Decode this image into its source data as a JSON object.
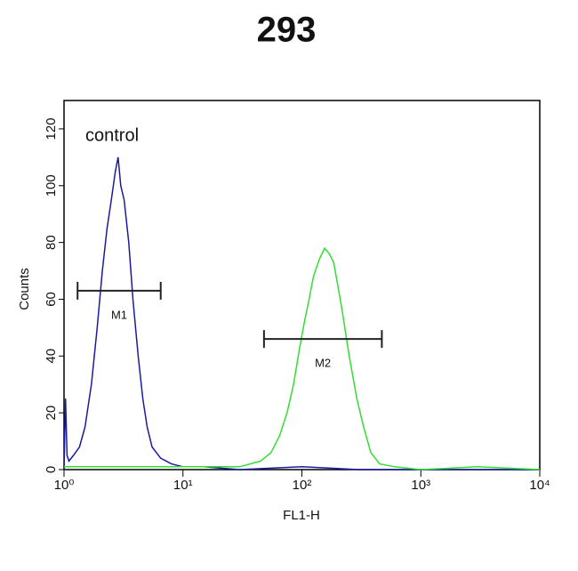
{
  "chart_data": {
    "type": "line",
    "title": "293",
    "annotation": "control",
    "xlabel": "FL1-H",
    "ylabel": "Counts",
    "xscale": "log",
    "xlim": [
      1,
      10000
    ],
    "ylim": [
      0,
      130
    ],
    "xticks": [
      {
        "value": 1,
        "label": "10⁰"
      },
      {
        "value": 10,
        "label": "10¹"
      },
      {
        "value": 100,
        "label": "10²"
      },
      {
        "value": 1000,
        "label": "10³"
      },
      {
        "value": 10000,
        "label": "10⁴"
      }
    ],
    "yticks": [
      0,
      20,
      40,
      60,
      80,
      100,
      120
    ],
    "series": [
      {
        "color": "#1a1aa0",
        "x": [
          1.0,
          1.03,
          1.06,
          1.1,
          1.2,
          1.35,
          1.5,
          1.7,
          1.9,
          2.1,
          2.3,
          2.5,
          2.7,
          2.85,
          3.0,
          3.2,
          3.5,
          3.8,
          4.2,
          4.6,
          5.0,
          5.5,
          6.5,
          8,
          10,
          15,
          30,
          100,
          300,
          1000,
          10000
        ],
        "values": [
          0,
          25,
          5,
          3,
          5,
          8,
          15,
          30,
          50,
          70,
          85,
          95,
          105,
          110,
          100,
          95,
          80,
          60,
          40,
          25,
          15,
          8,
          4,
          2,
          1,
          1,
          0,
          1,
          0,
          0,
          0
        ]
      },
      {
        "color": "#33dd33",
        "x": [
          1,
          10,
          30,
          45,
          55,
          65,
          75,
          85,
          95,
          105,
          115,
          125,
          140,
          155,
          170,
          185,
          200,
          220,
          250,
          290,
          330,
          380,
          450,
          600,
          1000,
          3000,
          10000
        ],
        "values": [
          1,
          1,
          1,
          3,
          6,
          12,
          20,
          30,
          42,
          52,
          60,
          68,
          74,
          78,
          76,
          73,
          65,
          55,
          40,
          25,
          15,
          6,
          2,
          1,
          0,
          1,
          0
        ]
      }
    ],
    "markers": [
      {
        "label": "M1",
        "x": [
          1.3,
          6.5
        ],
        "y": 63
      },
      {
        "label": "M2",
        "x": [
          48,
          470
        ],
        "y": 46
      }
    ]
  }
}
